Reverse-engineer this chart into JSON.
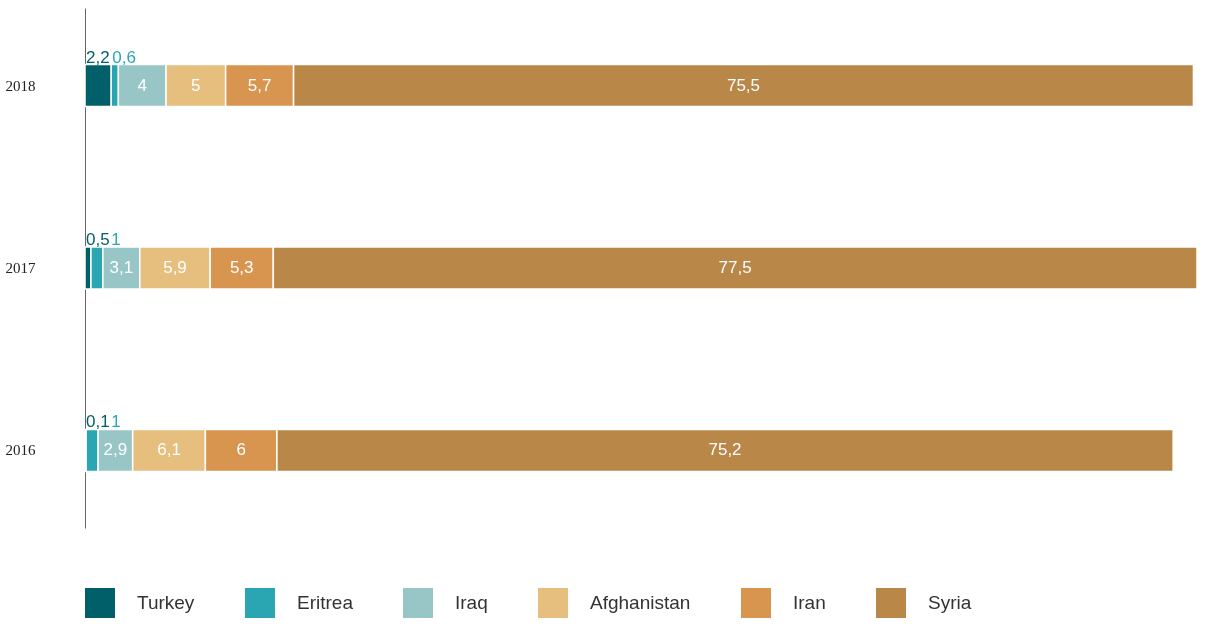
{
  "chart_data": {
    "type": "bar",
    "orientation": "horizontal",
    "stacked": true,
    "categories": [
      "2018",
      "2017",
      "2016"
    ],
    "series": [
      {
        "name": "Turkey",
        "color": "#005f69",
        "values": [
          2.2,
          0.5,
          0.1
        ],
        "value_labels": [
          "2,2",
          "0,5",
          "0,1"
        ]
      },
      {
        "name": "Eritrea",
        "color": "#2aa6b3",
        "values": [
          0.6,
          1,
          1
        ],
        "value_labels": [
          "0,6",
          "1",
          "1"
        ]
      },
      {
        "name": "Iraq",
        "color": "#98c5c5",
        "values": [
          4,
          3.1,
          2.9
        ],
        "value_labels": [
          "4",
          "3,1",
          "2,9"
        ]
      },
      {
        "name": "Afghanistan",
        "color": "#e6be7e",
        "values": [
          5,
          5.9,
          6.1
        ],
        "value_labels": [
          "5",
          "5,9",
          "6,1"
        ]
      },
      {
        "name": "Iran",
        "color": "#d8954f",
        "values": [
          5.7,
          5.3,
          6
        ],
        "value_labels": [
          "5,7",
          "5,3",
          "6"
        ]
      },
      {
        "name": "Syria",
        "color": "#b98748",
        "values": [
          75.5,
          77.5,
          75.2
        ],
        "value_labels": [
          "75,5",
          "77,5",
          "75,2"
        ]
      }
    ],
    "legend": "bottom"
  }
}
